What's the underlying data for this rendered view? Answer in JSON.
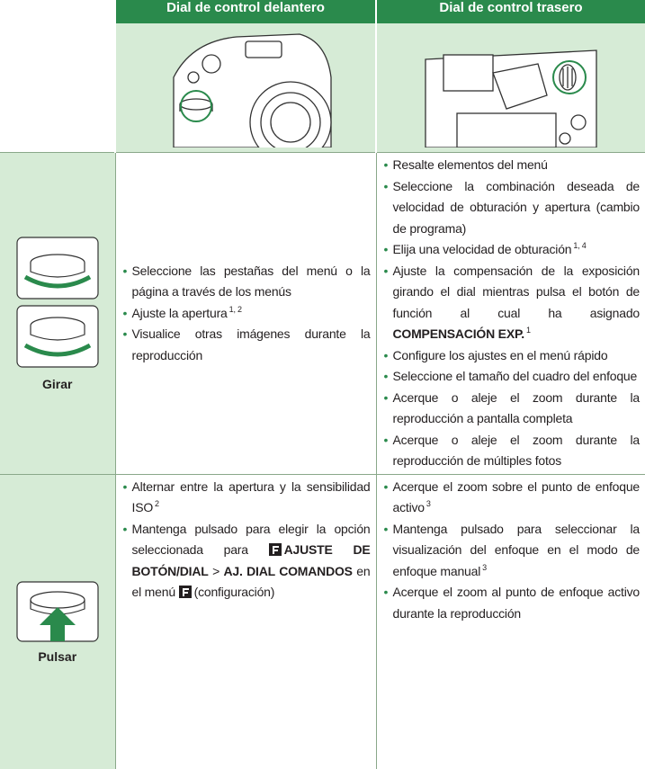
{
  "table": {
    "columns": [
      "Dial de control delantero",
      "Dial de control trasero"
    ],
    "rows": [
      {
        "label": "Girar",
        "cells": [
          [
            [
              {
                "t": "Seleccione las pestañas del menú o la página a través de los menús"
              }
            ],
            [
              {
                "t": "Ajuste la apertura"
              },
              {
                "t": "1, 2",
                "sup": true
              }
            ],
            [
              {
                "t": "Visualice otras imágenes durante la reproducción"
              }
            ]
          ],
          [
            [
              {
                "t": "Resalte elementos del menú"
              }
            ],
            [
              {
                "t": "Seleccione la combinación deseada de velocidad de obturación y apertura (cambio de programa)"
              }
            ],
            [
              {
                "t": "Elija una velocidad de obturación"
              },
              {
                "t": "1, 4",
                "sup": true
              }
            ],
            [
              {
                "t": "Ajuste la compensación de la exposición girando el dial mientras pulsa el botón de función al cual ha asignado"
              },
              {
                "t": "COMPENSACIÓN EXP.",
                "bold": true
              },
              {
                "t": "1",
                "sup": true
              }
            ],
            [
              {
                "t": "Configure los ajustes en el menú rápido"
              }
            ],
            [
              {
                "t": "Seleccione el tamaño del cuadro del enfoque"
              }
            ],
            [
              {
                "t": "Acerque o aleje el zoom durante la reproducción a pantalla completa"
              }
            ],
            [
              {
                "t": "Acerque o aleje el zoom durante la reproducción de múltiples fotos"
              }
            ]
          ]
        ]
      },
      {
        "label": "Pulsar",
        "cells": [
          [
            [
              {
                "t": "Alternar entre la apertura y la sensibilidad ISO"
              },
              {
                "t": "2",
                "sup": true
              }
            ],
            [
              {
                "t": "Mantenga pulsado para elegir la opción seleccionada para"
              },
              {
                "t": "AJUSTE DE BOTÓN/DIAL",
                "bold": true,
                "icon_before": true
              },
              {
                "t": ">"
              },
              {
                "t": "AJ. DIAL COMANDOS",
                "bold": true
              },
              {
                "t": "en el menú"
              },
              {
                "t": "(configuración)",
                "icon_before": true
              }
            ]
          ],
          [
            [
              {
                "t": "Acerque el zoom sobre el punto de enfoque activo"
              },
              {
                "t": "3",
                "sup": true
              }
            ],
            [
              {
                "t": "Mantenga pulsado para seleccionar la visualización del enfoque en el modo de enfoque manual"
              },
              {
                "t": "3",
                "sup": true
              }
            ],
            [
              {
                "t": "Acerque el zoom al punto de enfoque activo durante la reproducción"
              }
            ]
          ]
        ]
      }
    ]
  }
}
